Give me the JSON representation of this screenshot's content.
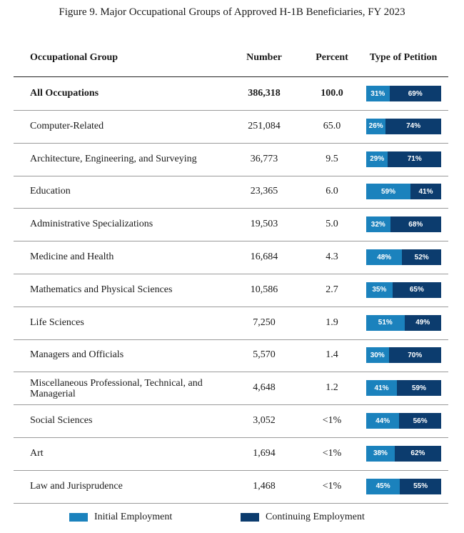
{
  "title": "Figure 9. Major Occupational Groups of Approved H-1B Beneficiaries, FY 2023",
  "columns": {
    "group": "Occupational Group",
    "number": "Number",
    "percent": "Percent",
    "type": "Type of Petition"
  },
  "colors": {
    "initial": "#1b82bd",
    "continuing": "#0c3c6e"
  },
  "legend": {
    "initial": "Initial Employment",
    "continuing": "Continuing Employment"
  },
  "chart_data": {
    "type": "table",
    "title": "Figure 9. Major Occupational Groups of Approved H-1B Beneficiaries, FY 2023",
    "columns": [
      "Occupational Group",
      "Number",
      "Percent",
      "Type of Petition"
    ],
    "series": [
      {
        "name": "Initial Employment",
        "values": [
          31,
          26,
          29,
          59,
          32,
          48,
          35,
          51,
          30,
          41,
          44,
          38,
          45
        ]
      },
      {
        "name": "Continuing Employment",
        "values": [
          69,
          74,
          71,
          41,
          68,
          52,
          65,
          49,
          70,
          59,
          56,
          62,
          55
        ]
      }
    ],
    "rows": [
      {
        "group": "All Occupations",
        "number": "386,318",
        "percent": "100.0",
        "initial": 31,
        "continuing": 69,
        "initial_label": "31%",
        "continuing_label": "69%",
        "bold": true
      },
      {
        "group": "Computer-Related",
        "number": "251,084",
        "percent": "65.0",
        "initial": 26,
        "continuing": 74,
        "initial_label": "26%",
        "continuing_label": "74%"
      },
      {
        "group": "Architecture, Engineering, and Surveying",
        "number": "36,773",
        "percent": "9.5",
        "initial": 29,
        "continuing": 71,
        "initial_label": "29%",
        "continuing_label": "71%"
      },
      {
        "group": "Education",
        "number": "23,365",
        "percent": "6.0",
        "initial": 59,
        "continuing": 41,
        "initial_label": "59%",
        "continuing_label": "41%"
      },
      {
        "group": "Administrative Specializations",
        "number": "19,503",
        "percent": "5.0",
        "initial": 32,
        "continuing": 68,
        "initial_label": "32%",
        "continuing_label": "68%"
      },
      {
        "group": "Medicine and Health",
        "number": "16,684",
        "percent": "4.3",
        "initial": 48,
        "continuing": 52,
        "initial_label": "48%",
        "continuing_label": "52%"
      },
      {
        "group": "Mathematics and Physical Sciences",
        "number": "10,586",
        "percent": "2.7",
        "initial": 35,
        "continuing": 65,
        "initial_label": "35%",
        "continuing_label": "65%"
      },
      {
        "group": "Life Sciences",
        "number": "7,250",
        "percent": "1.9",
        "initial": 51,
        "continuing": 49,
        "initial_label": "51%",
        "continuing_label": "49%"
      },
      {
        "group": "Managers and Officials",
        "number": "5,570",
        "percent": "1.4",
        "initial": 30,
        "continuing": 70,
        "initial_label": "30%",
        "continuing_label": "70%"
      },
      {
        "group": "Miscellaneous Professional, Technical, and Managerial",
        "number": "4,648",
        "percent": "1.2",
        "initial": 41,
        "continuing": 59,
        "initial_label": "41%",
        "continuing_label": "59%"
      },
      {
        "group": "Social Sciences",
        "number": "3,052",
        "percent": "<1%",
        "initial": 44,
        "continuing": 56,
        "initial_label": "44%",
        "continuing_label": "56%"
      },
      {
        "group": "Art",
        "number": "1,694",
        "percent": "<1%",
        "initial": 38,
        "continuing": 62,
        "initial_label": "38%",
        "continuing_label": "62%"
      },
      {
        "group": "Law and Jurisprudence",
        "number": "1,468",
        "percent": "<1%",
        "initial": 45,
        "continuing": 55,
        "initial_label": "45%",
        "continuing_label": "55%"
      }
    ]
  }
}
